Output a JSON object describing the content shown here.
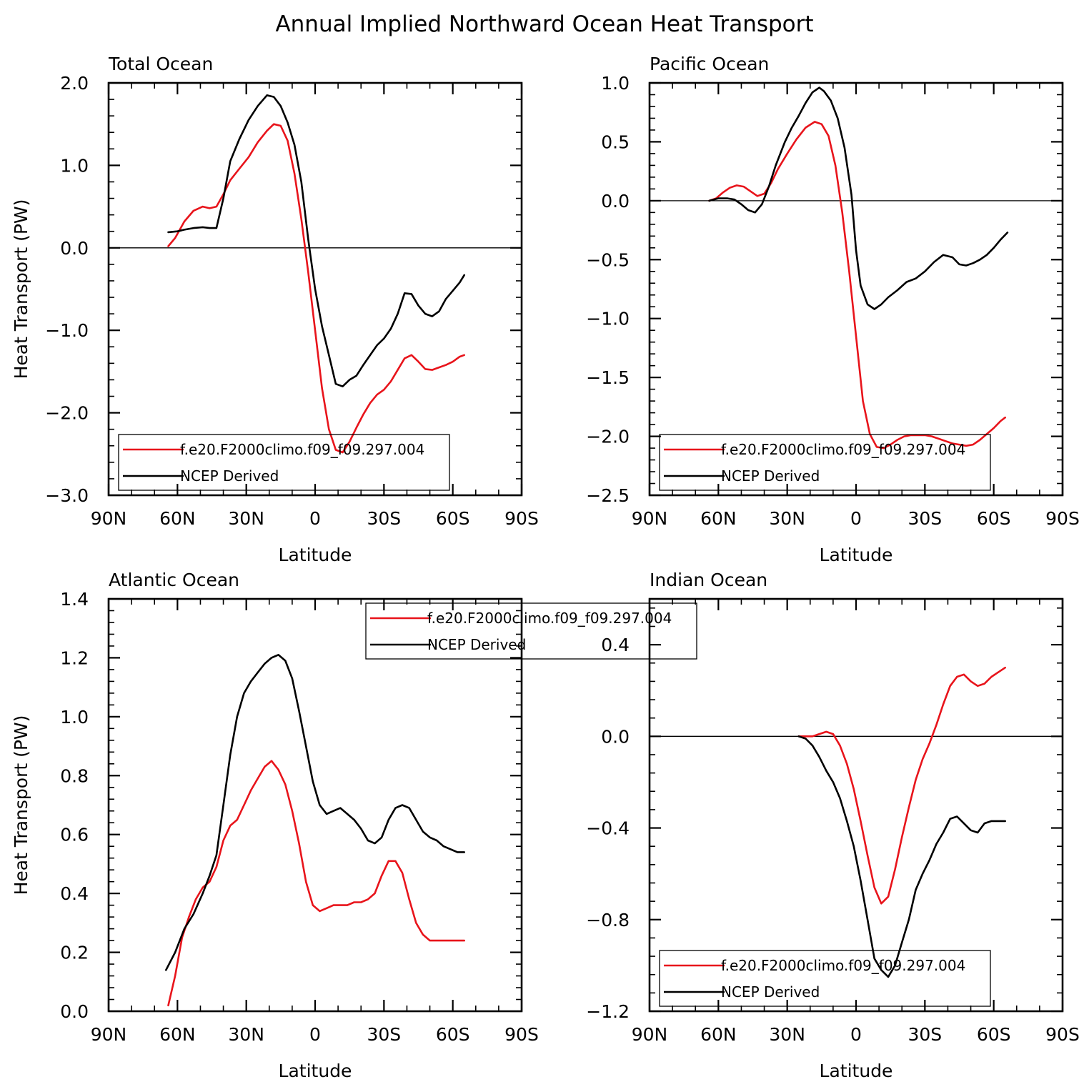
{
  "figure_title": "Annual Implied Northward Ocean Heat Transport",
  "colors": {
    "model": "#e8141b",
    "obs": "#000000"
  },
  "chart_data": [
    {
      "type": "line",
      "title": "Total Ocean",
      "xlabel": "Latitude",
      "ylabel": "Heat Transport (PW)",
      "xlim": [
        90,
        -90
      ],
      "ylim": [
        -3.0,
        2.0
      ],
      "xticks": [
        90,
        60,
        30,
        0,
        -30,
        -60,
        -90
      ],
      "xticklabels": [
        "90N",
        "60N",
        "30N",
        "0",
        "30S",
        "60S",
        "90S"
      ],
      "yticks": [
        -3.0,
        -2.0,
        -1.0,
        0.0,
        1.0,
        2.0
      ],
      "yticklabels": [
        "−3.0",
        "−2.0",
        "−1.0",
        "0.0",
        "1.0",
        "2.0"
      ],
      "zero_line": true,
      "legend": {
        "placement": "bottom-left",
        "entries": [
          "f.e20.F2000climo.f09_f09.297.004",
          "NCEP Derived"
        ]
      },
      "series": [
        {
          "name": "f.e20.F2000climo.f09_f09.297.004",
          "color": "#e8141b",
          "x": [
            64,
            61,
            57,
            53,
            49,
            46,
            43,
            40,
            37,
            33,
            29,
            25,
            21,
            18,
            15,
            12,
            9,
            6,
            3,
            0,
            -3,
            -6,
            -9,
            -12,
            -15,
            -18,
            -21,
            -24,
            -27,
            -30,
            -33,
            -36,
            -39,
            -42,
            -45,
            -48,
            -51,
            -54,
            -57,
            -60,
            -63,
            -65
          ],
          "y": [
            0.02,
            0.12,
            0.32,
            0.45,
            0.5,
            0.48,
            0.5,
            0.65,
            0.82,
            0.96,
            1.1,
            1.28,
            1.42,
            1.5,
            1.48,
            1.3,
            0.9,
            0.35,
            -0.3,
            -1.0,
            -1.7,
            -2.2,
            -2.45,
            -2.48,
            -2.35,
            -2.18,
            -2.02,
            -1.88,
            -1.78,
            -1.72,
            -1.62,
            -1.48,
            -1.34,
            -1.3,
            -1.38,
            -1.47,
            -1.48,
            -1.45,
            -1.42,
            -1.38,
            -1.32,
            -1.3
          ]
        },
        {
          "name": "NCEP Derived",
          "color": "#000000",
          "x": [
            64,
            60,
            57,
            53,
            49,
            46,
            43,
            40,
            37,
            33,
            29,
            25,
            21,
            18,
            15,
            12,
            9,
            6,
            3,
            0,
            -3,
            -6,
            -9,
            -12,
            -15,
            -18,
            -21,
            -24,
            -27,
            -30,
            -33,
            -36,
            -39,
            -42,
            -45,
            -48,
            -51,
            -54,
            -57,
            -60,
            -63,
            -65
          ],
          "y": [
            0.19,
            0.2,
            0.22,
            0.24,
            0.25,
            0.24,
            0.24,
            0.6,
            1.05,
            1.32,
            1.55,
            1.72,
            1.85,
            1.83,
            1.72,
            1.52,
            1.25,
            0.8,
            0.1,
            -0.5,
            -0.95,
            -1.3,
            -1.65,
            -1.68,
            -1.6,
            -1.55,
            -1.42,
            -1.3,
            -1.18,
            -1.1,
            -0.98,
            -0.8,
            -0.55,
            -0.56,
            -0.7,
            -0.8,
            -0.83,
            -0.77,
            -0.62,
            -0.52,
            -0.42,
            -0.33
          ]
        }
      ]
    },
    {
      "type": "line",
      "title": "Pacific Ocean",
      "xlabel": "Latitude",
      "ylabel": "",
      "xlim": [
        90,
        -90
      ],
      "ylim": [
        -2.5,
        1.0
      ],
      "xticks": [
        90,
        60,
        30,
        0,
        -30,
        -60,
        -90
      ],
      "xticklabels": [
        "90N",
        "60N",
        "30N",
        "0",
        "30S",
        "60S",
        "90S"
      ],
      "yticks": [
        -2.5,
        -2.0,
        -1.5,
        -1.0,
        -0.5,
        0.0,
        0.5,
        1.0
      ],
      "yticklabels": [
        "−2.5",
        "−2.0",
        "−1.5",
        "−1.0",
        "−0.5",
        "0.0",
        "0.5",
        "1.0"
      ],
      "zero_line": true,
      "legend": {
        "placement": "bottom-left",
        "entries": [
          "f.e20.F2000climo.f09_f09.297.004",
          "NCEP Derived"
        ]
      },
      "series": [
        {
          "name": "f.e20.F2000climo.f09_f09.297.004",
          "color": "#e8141b",
          "x": [
            64,
            61,
            58,
            55,
            52,
            49,
            46,
            43,
            40,
            37,
            34,
            30,
            26,
            22,
            18,
            15,
            12,
            9,
            6,
            3,
            0,
            -3,
            -6,
            -9,
            -12,
            -15,
            -18,
            -21,
            -24,
            -27,
            -30,
            -33,
            -36,
            -39,
            -42,
            -45,
            -48,
            -51,
            -54,
            -57,
            -60,
            -63,
            -65
          ],
          "y": [
            0.0,
            0.02,
            0.07,
            0.11,
            0.13,
            0.12,
            0.08,
            0.04,
            0.06,
            0.15,
            0.27,
            0.4,
            0.52,
            0.62,
            0.67,
            0.65,
            0.55,
            0.3,
            -0.1,
            -0.6,
            -1.15,
            -1.7,
            -1.98,
            -2.09,
            -2.1,
            -2.07,
            -2.03,
            -2.0,
            -1.99,
            -1.99,
            -1.99,
            -2.0,
            -2.02,
            -2.04,
            -2.06,
            -2.07,
            -2.08,
            -2.07,
            -2.03,
            -1.98,
            -1.93,
            -1.87,
            -1.84
          ]
        },
        {
          "name": "NCEP Derived",
          "color": "#000000",
          "x": [
            64,
            60,
            56,
            53,
            50,
            47,
            44,
            41,
            38,
            35,
            31,
            28,
            25,
            22,
            19,
            16,
            14,
            11,
            8,
            5,
            2,
            0,
            -2,
            -5,
            -8,
            -11,
            -14,
            -18,
            -22,
            -26,
            -30,
            -34,
            -38,
            -42,
            -45,
            -48,
            -51,
            -54,
            -57,
            -60,
            -63,
            -66
          ],
          "y": [
            0.0,
            0.02,
            0.02,
            0.01,
            -0.03,
            -0.08,
            -0.1,
            -0.03,
            0.12,
            0.3,
            0.5,
            0.62,
            0.72,
            0.83,
            0.92,
            0.96,
            0.93,
            0.85,
            0.7,
            0.45,
            0.05,
            -0.42,
            -0.72,
            -0.88,
            -0.92,
            -0.88,
            -0.82,
            -0.76,
            -0.69,
            -0.66,
            -0.6,
            -0.52,
            -0.46,
            -0.48,
            -0.54,
            -0.55,
            -0.53,
            -0.5,
            -0.46,
            -0.4,
            -0.33,
            -0.27
          ]
        }
      ]
    },
    {
      "type": "line",
      "title": "Atlantic Ocean",
      "xlabel": "Latitude",
      "ylabel": "Heat Transport (PW)",
      "xlim": [
        90,
        -90
      ],
      "ylim": [
        0.0,
        1.4
      ],
      "xticks": [
        90,
        60,
        30,
        0,
        -30,
        -60,
        -90
      ],
      "xticklabels": [
        "90N",
        "60N",
        "30N",
        "0",
        "30S",
        "60S",
        "90S"
      ],
      "yticks": [
        0.0,
        0.2,
        0.4,
        0.6,
        0.8,
        1.0,
        1.2,
        1.4
      ],
      "yticklabels": [
        "0.0",
        "0.2",
        "0.4",
        "0.6",
        "0.8",
        "1.0",
        "1.2",
        "1.4"
      ],
      "zero_line": false,
      "legend": {
        "placement": "top-right",
        "entries": [
          "f.e20.F2000climo.f09_f09.297.004",
          "NCEP Derived"
        ]
      },
      "series": [
        {
          "name": "f.e20.F2000climo.f09_f09.297.004",
          "color": "#e8141b",
          "x": [
            64,
            61,
            58,
            55,
            52,
            49,
            46,
            43,
            40,
            37,
            34,
            31,
            28,
            25,
            22,
            19,
            16,
            13,
            10,
            7,
            4,
            1,
            -2,
            -5,
            -8,
            -11,
            -14,
            -17,
            -20,
            -23,
            -26,
            -29,
            -32,
            -35,
            -38,
            -41,
            -44,
            -47,
            -50,
            -53,
            -56,
            -59,
            -62,
            -65
          ],
          "y": [
            0.02,
            0.12,
            0.25,
            0.32,
            0.38,
            0.42,
            0.44,
            0.49,
            0.58,
            0.63,
            0.65,
            0.7,
            0.75,
            0.79,
            0.83,
            0.85,
            0.82,
            0.77,
            0.68,
            0.57,
            0.44,
            0.36,
            0.34,
            0.35,
            0.36,
            0.36,
            0.36,
            0.37,
            0.37,
            0.38,
            0.4,
            0.46,
            0.51,
            0.51,
            0.47,
            0.38,
            0.3,
            0.26,
            0.24,
            0.24,
            0.24,
            0.24,
            0.24,
            0.24
          ]
        },
        {
          "name": "NCEP Derived",
          "color": "#000000",
          "x": [
            65,
            61,
            57,
            53,
            49,
            46,
            43,
            40,
            37,
            34,
            31,
            28,
            25,
            22,
            19,
            16,
            13,
            10,
            7,
            4,
            1,
            -2,
            -5,
            -8,
            -11,
            -14,
            -17,
            -20,
            -23,
            -26,
            -29,
            -32,
            -35,
            -38,
            -41,
            -44,
            -47,
            -50,
            -53,
            -56,
            -59,
            -62,
            -65
          ],
          "y": [
            0.14,
            0.2,
            0.28,
            0.33,
            0.4,
            0.46,
            0.53,
            0.7,
            0.87,
            1.0,
            1.08,
            1.12,
            1.15,
            1.18,
            1.2,
            1.21,
            1.19,
            1.13,
            1.02,
            0.9,
            0.78,
            0.7,
            0.67,
            0.68,
            0.69,
            0.67,
            0.65,
            0.62,
            0.58,
            0.57,
            0.59,
            0.65,
            0.69,
            0.7,
            0.69,
            0.65,
            0.61,
            0.59,
            0.58,
            0.56,
            0.55,
            0.54,
            0.54
          ]
        }
      ]
    },
    {
      "type": "line",
      "title": "Indian Ocean",
      "xlabel": "Latitude",
      "ylabel": "",
      "xlim": [
        90,
        -90
      ],
      "ylim": [
        -1.2,
        0.6
      ],
      "xticks": [
        90,
        60,
        30,
        0,
        -30,
        -60,
        -90
      ],
      "xticklabels": [
        "90N",
        "60N",
        "30N",
        "0",
        "30S",
        "60S",
        "90S"
      ],
      "yticks": [
        -1.2,
        -0.8,
        -0.4,
        0.0,
        0.4
      ],
      "yticklabels": [
        "−1.2",
        "−0.8",
        "−0.4",
        "0.0",
        "0.4"
      ],
      "zero_line": true,
      "legend": {
        "placement": "bottom-left",
        "entries": [
          "f.e20.F2000climo.f09_f09.297.004",
          "NCEP Derived"
        ]
      },
      "series": [
        {
          "name": "f.e20.F2000climo.f09_f09.297.004",
          "color": "#e8141b",
          "x": [
            25,
            22,
            19,
            16,
            13,
            10,
            7,
            4,
            1,
            -2,
            -5,
            -8,
            -11,
            -14,
            -17,
            -20,
            -23,
            -26,
            -29,
            -32,
            -35,
            -38,
            -41,
            -44,
            -47,
            -50,
            -53,
            -56,
            -59,
            -62,
            -65
          ],
          "y": [
            0.0,
            0.0,
            0.0,
            0.01,
            0.02,
            0.01,
            -0.04,
            -0.12,
            -0.23,
            -0.37,
            -0.52,
            -0.66,
            -0.73,
            -0.7,
            -0.58,
            -0.44,
            -0.31,
            -0.19,
            -0.1,
            -0.03,
            0.05,
            0.14,
            0.22,
            0.26,
            0.27,
            0.24,
            0.22,
            0.23,
            0.26,
            0.28,
            0.3
          ]
        },
        {
          "name": "NCEP Derived",
          "color": "#000000",
          "x": [
            25,
            22,
            19,
            16,
            13,
            10,
            7,
            4,
            1,
            -2,
            -5,
            -8,
            -11,
            -14,
            -17,
            -20,
            -23,
            -26,
            -29,
            -32,
            -35,
            -38,
            -41,
            -44,
            -47,
            -50,
            -53,
            -56,
            -59,
            -62,
            -65
          ],
          "y": [
            0.0,
            -0.01,
            -0.04,
            -0.09,
            -0.15,
            -0.2,
            -0.27,
            -0.37,
            -0.48,
            -0.63,
            -0.8,
            -0.97,
            -1.02,
            -1.05,
            -1.0,
            -0.9,
            -0.8,
            -0.67,
            -0.6,
            -0.54,
            -0.47,
            -0.42,
            -0.36,
            -0.35,
            -0.38,
            -0.41,
            -0.42,
            -0.38,
            -0.37,
            -0.37,
            -0.37
          ]
        }
      ]
    }
  ]
}
